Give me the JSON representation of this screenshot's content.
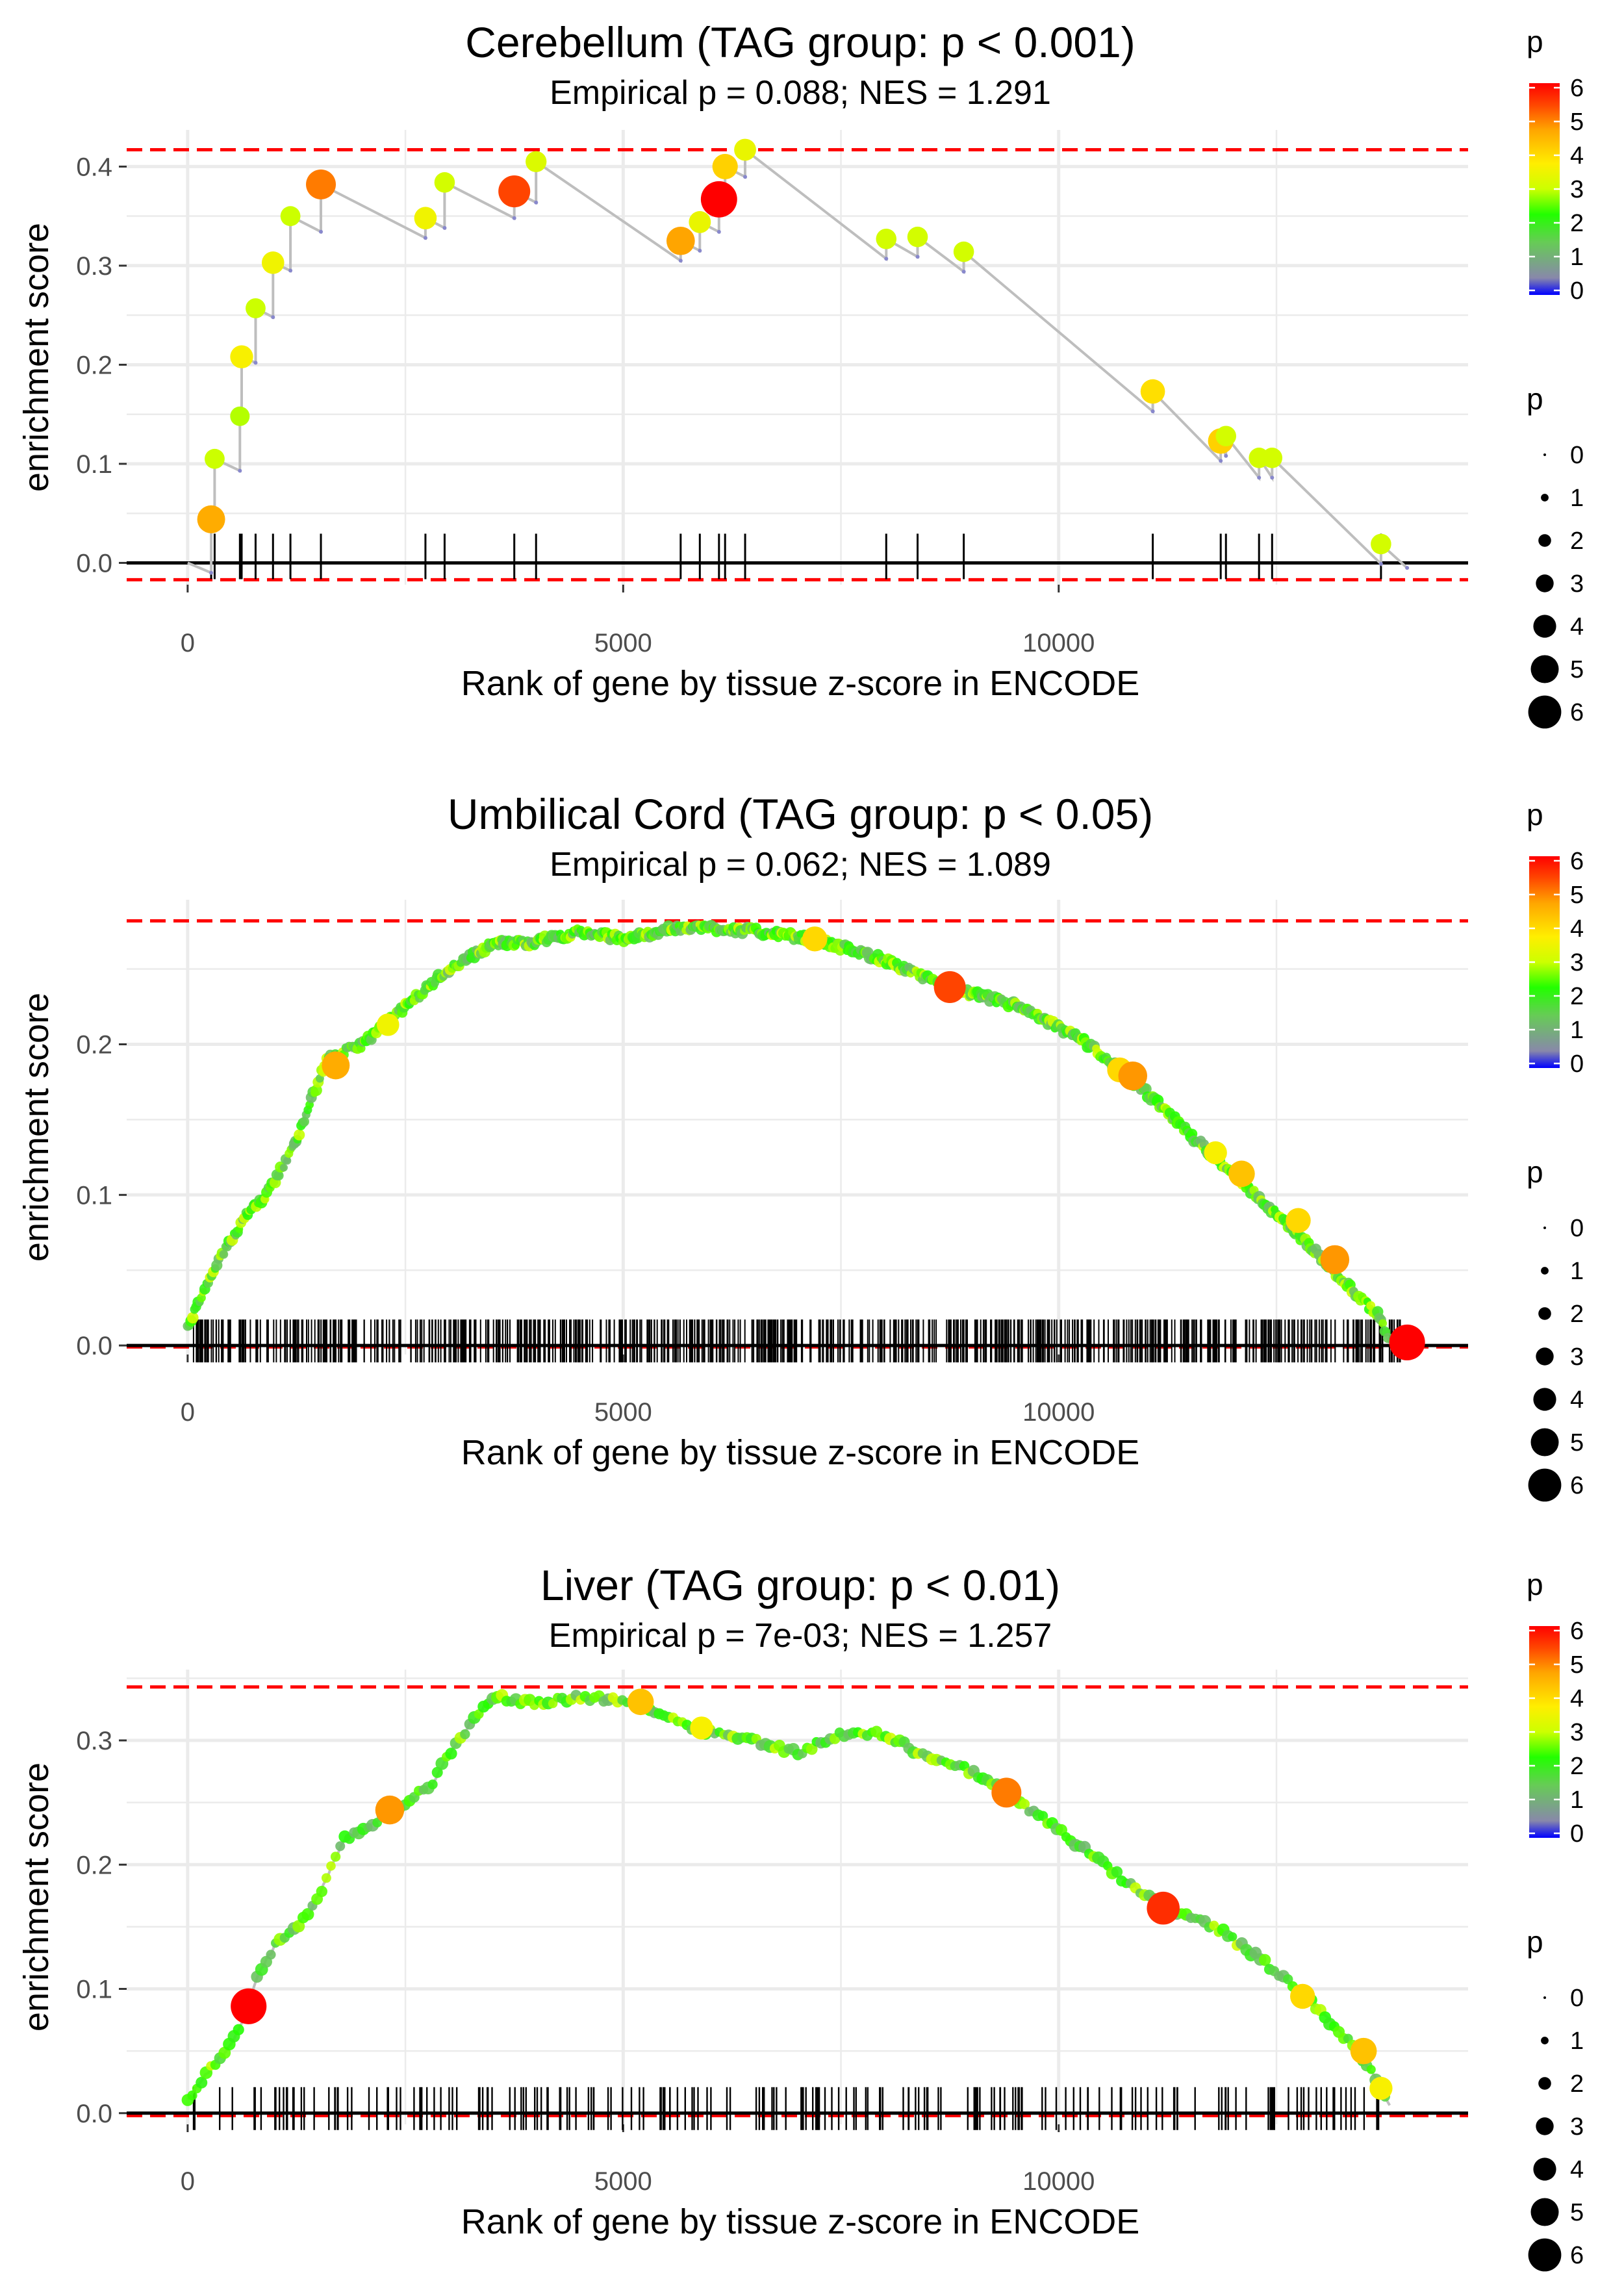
{
  "colors": {
    "grid": "#ebebeb",
    "threshold": "#ff0000",
    "running_line": "#bebebe",
    "baseline": "#000000",
    "colorbar": [
      "#0000ff",
      "#8888aa",
      "#66cc55",
      "#22ff00",
      "#ccff00",
      "#ffee00",
      "#ffa500",
      "#ff4400",
      "#ff0000"
    ]
  },
  "legend": {
    "color_title": "p",
    "size_title": "p",
    "color_ticks": [
      "0",
      "1",
      "2",
      "3",
      "4",
      "5",
      "6"
    ],
    "size_ticks": [
      "0",
      "1",
      "2",
      "3",
      "4",
      "5",
      "6"
    ]
  },
  "chart_data": [
    {
      "type": "scatter",
      "title": "Cerebellum (TAG group: p < 0.001)",
      "subtitle": "Empirical p = 0.088; NES = 1.291",
      "xlabel": "Rank of gene by tissue z-score in ENCODE",
      "ylabel": "enrichment score",
      "xlim": [
        -700,
        14700
      ],
      "ylim": [
        -0.022,
        0.437
      ],
      "xticks": [
        0,
        5000,
        10000
      ],
      "xtick_labels": [
        "0",
        "5000",
        "10000"
      ],
      "yticks": [
        0,
        0.1,
        0.2,
        0.3,
        0.4
      ],
      "ytick_labels": [
        "0.0",
        "0.1",
        "0.2",
        "0.3",
        "0.4"
      ],
      "threshold_lines": [
        0.417,
        -0.017
      ],
      "step_mode": "sparse",
      "gene_count": 14000,
      "points": [
        {
          "x": 270,
          "y": 0.044,
          "p": 4.6
        },
        {
          "x": 310,
          "y": 0.105,
          "p": 3.0
        },
        {
          "x": 600,
          "y": 0.148,
          "p": 2.9
        },
        {
          "x": 620,
          "y": 0.208,
          "p": 3.6
        },
        {
          "x": 780,
          "y": 0.257,
          "p": 3.0
        },
        {
          "x": 980,
          "y": 0.303,
          "p": 3.5
        },
        {
          "x": 1180,
          "y": 0.35,
          "p": 3.0
        },
        {
          "x": 1530,
          "y": 0.382,
          "p": 5.0
        },
        {
          "x": 2730,
          "y": 0.348,
          "p": 3.5
        },
        {
          "x": 2950,
          "y": 0.384,
          "p": 3.1
        },
        {
          "x": 3750,
          "y": 0.375,
          "p": 5.4
        },
        {
          "x": 4000,
          "y": 0.405,
          "p": 3.2
        },
        {
          "x": 5660,
          "y": 0.325,
          "p": 4.7
        },
        {
          "x": 5880,
          "y": 0.344,
          "p": 3.4
        },
        {
          "x": 6100,
          "y": 0.367,
          "p": 6.3
        },
        {
          "x": 6170,
          "y": 0.4,
          "p": 4.1
        },
        {
          "x": 6400,
          "y": 0.417,
          "p": 3.4
        },
        {
          "x": 8020,
          "y": 0.327,
          "p": 3.1
        },
        {
          "x": 8380,
          "y": 0.329,
          "p": 3.1
        },
        {
          "x": 8910,
          "y": 0.314,
          "p": 3.1
        },
        {
          "x": 11080,
          "y": 0.173,
          "p": 3.9
        },
        {
          "x": 11860,
          "y": 0.123,
          "p": 4.1
        },
        {
          "x": 11920,
          "y": 0.128,
          "p": 3.1
        },
        {
          "x": 12300,
          "y": 0.106,
          "p": 3.1
        },
        {
          "x": 12450,
          "y": 0.106,
          "p": 3.1
        },
        {
          "x": 13700,
          "y": 0.019,
          "p": 3.1
        }
      ]
    },
    {
      "type": "scatter",
      "title": "Umbilical Cord (TAG group: p < 0.05)",
      "subtitle": "Empirical p = 0.062; NES = 1.089",
      "xlabel": "Rank of gene by tissue z-score in ENCODE",
      "ylabel": "enrichment score",
      "xlim": [
        -700,
        14700
      ],
      "ylim": [
        -0.006,
        0.296
      ],
      "xticks": [
        0,
        5000,
        10000
      ],
      "xtick_labels": [
        "0",
        "5000",
        "10000"
      ],
      "yticks": [
        0,
        0.1,
        0.2
      ],
      "ytick_labels": [
        "0.0",
        "0.1",
        "0.2"
      ],
      "threshold_lines": [
        0.282,
        -0.001
      ],
      "step_mode": "dense",
      "gene_count": 14000,
      "curve_points": [
        {
          "x": 0,
          "y": 0.012
        },
        {
          "x": 300,
          "y": 0.05
        },
        {
          "x": 500,
          "y": 0.07
        },
        {
          "x": 700,
          "y": 0.09
        },
        {
          "x": 900,
          "y": 0.1
        },
        {
          "x": 1200,
          "y": 0.13
        },
        {
          "x": 1400,
          "y": 0.16
        },
        {
          "x": 1600,
          "y": 0.19
        },
        {
          "x": 2000,
          "y": 0.2
        },
        {
          "x": 2400,
          "y": 0.22
        },
        {
          "x": 3000,
          "y": 0.25
        },
        {
          "x": 3500,
          "y": 0.267
        },
        {
          "x": 4000,
          "y": 0.268
        },
        {
          "x": 4500,
          "y": 0.275
        },
        {
          "x": 5000,
          "y": 0.27
        },
        {
          "x": 5500,
          "y": 0.276
        },
        {
          "x": 5900,
          "y": 0.278
        },
        {
          "x": 6500,
          "y": 0.275
        },
        {
          "x": 7200,
          "y": 0.27
        },
        {
          "x": 8000,
          "y": 0.256
        },
        {
          "x": 8700,
          "y": 0.238
        },
        {
          "x": 9500,
          "y": 0.226
        },
        {
          "x": 10300,
          "y": 0.202
        },
        {
          "x": 11000,
          "y": 0.168
        },
        {
          "x": 11700,
          "y": 0.13
        },
        {
          "x": 12300,
          "y": 0.098
        },
        {
          "x": 12900,
          "y": 0.065
        },
        {
          "x": 13400,
          "y": 0.035
        },
        {
          "x": 13700,
          "y": 0.018
        },
        {
          "x": 13800,
          "y": 0.0
        }
      ],
      "highlights": [
        {
          "x": 1700,
          "y": 0.186,
          "p": 4.6
        },
        {
          "x": 2300,
          "y": 0.213,
          "p": 3.5
        },
        {
          "x": 7200,
          "y": 0.27,
          "p": 4.0
        },
        {
          "x": 8750,
          "y": 0.238,
          "p": 5.4
        },
        {
          "x": 10700,
          "y": 0.183,
          "p": 4.0
        },
        {
          "x": 10850,
          "y": 0.179,
          "p": 4.8
        },
        {
          "x": 11800,
          "y": 0.128,
          "p": 3.6
        },
        {
          "x": 12100,
          "y": 0.114,
          "p": 4.3
        },
        {
          "x": 12750,
          "y": 0.083,
          "p": 4.0
        },
        {
          "x": 13170,
          "y": 0.057,
          "p": 4.8
        },
        {
          "x": 14000,
          "y": 0.002,
          "p": 6.2
        }
      ]
    },
    {
      "type": "scatter",
      "title": "Liver (TAG group: p < 0.01)",
      "subtitle": "Empirical p = 7e-03; NES = 1.257",
      "xlabel": "Rank of gene by tissue z-score in ENCODE",
      "ylabel": "enrichment score",
      "xlim": [
        -700,
        14700
      ],
      "ylim": [
        -0.009,
        0.357
      ],
      "xticks": [
        0,
        5000,
        10000
      ],
      "xtick_labels": [
        "0",
        "5000",
        "10000"
      ],
      "yticks": [
        0,
        0.1,
        0.2,
        0.3
      ],
      "ytick_labels": [
        "0.0",
        "0.1",
        "0.2",
        "0.3"
      ],
      "threshold_lines": [
        0.343,
        -0.002
      ],
      "step_mode": "medium",
      "gene_count": 14000,
      "curve_points": [
        {
          "x": 0,
          "y": 0.01
        },
        {
          "x": 300,
          "y": 0.04
        },
        {
          "x": 500,
          "y": 0.055
        },
        {
          "x": 700,
          "y": 0.085
        },
        {
          "x": 800,
          "y": 0.11
        },
        {
          "x": 1000,
          "y": 0.135
        },
        {
          "x": 1400,
          "y": 0.16
        },
        {
          "x": 1800,
          "y": 0.22
        },
        {
          "x": 2300,
          "y": 0.24
        },
        {
          "x": 2800,
          "y": 0.265
        },
        {
          "x": 3100,
          "y": 0.3
        },
        {
          "x": 3500,
          "y": 0.335
        },
        {
          "x": 4000,
          "y": 0.33
        },
        {
          "x": 4500,
          "y": 0.335
        },
        {
          "x": 5200,
          "y": 0.33
        },
        {
          "x": 5800,
          "y": 0.31
        },
        {
          "x": 6500,
          "y": 0.3
        },
        {
          "x": 7000,
          "y": 0.29
        },
        {
          "x": 7500,
          "y": 0.305
        },
        {
          "x": 8000,
          "y": 0.305
        },
        {
          "x": 8400,
          "y": 0.29
        },
        {
          "x": 9000,
          "y": 0.275
        },
        {
          "x": 9400,
          "y": 0.258
        },
        {
          "x": 10000,
          "y": 0.228
        },
        {
          "x": 10700,
          "y": 0.19
        },
        {
          "x": 11200,
          "y": 0.165
        },
        {
          "x": 11800,
          "y": 0.15
        },
        {
          "x": 12300,
          "y": 0.125
        },
        {
          "x": 12900,
          "y": 0.09
        },
        {
          "x": 13400,
          "y": 0.052
        },
        {
          "x": 13700,
          "y": 0.022
        },
        {
          "x": 13800,
          "y": 0.005
        }
      ],
      "highlights": [
        {
          "x": 700,
          "y": 0.086,
          "p": 6.2
        },
        {
          "x": 2320,
          "y": 0.244,
          "p": 4.8
        },
        {
          "x": 5200,
          "y": 0.331,
          "p": 4.3
        },
        {
          "x": 5900,
          "y": 0.31,
          "p": 3.6
        },
        {
          "x": 9400,
          "y": 0.258,
          "p": 5.0
        },
        {
          "x": 11200,
          "y": 0.165,
          "p": 5.6
        },
        {
          "x": 12800,
          "y": 0.094,
          "p": 4.0
        },
        {
          "x": 13500,
          "y": 0.05,
          "p": 4.3
        },
        {
          "x": 13700,
          "y": 0.02,
          "p": 3.6
        }
      ]
    }
  ]
}
